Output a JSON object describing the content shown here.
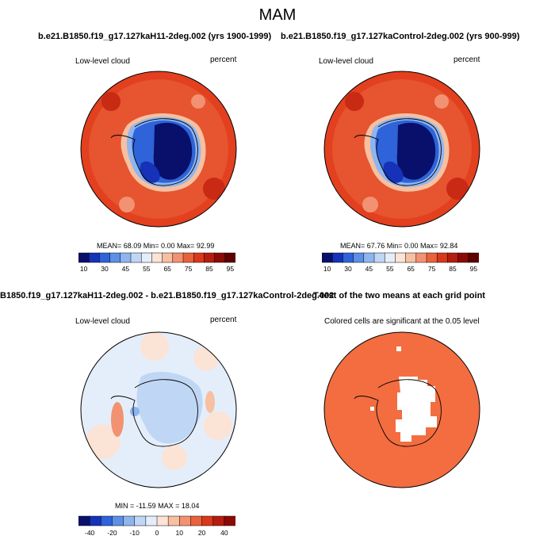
{
  "main_title": "MAM",
  "panels": [
    {
      "title": "b.e21.B1850.f19_g17.127kaH11-2deg.002 (yrs 1900-1999)",
      "left_label": "Low-level cloud",
      "right_label": "percent",
      "stats": "MEAN= 68.09  Min=   0.00  Max=  92.99",
      "colorbar_ticks": [
        "10",
        "30",
        "45",
        "55",
        "65",
        "75",
        "85",
        "95"
      ]
    },
    {
      "title": "b.e21.B1850.f19_g17.127kaControl-2deg.002 (yrs 900-999)",
      "left_label": "Low-level cloud",
      "right_label": "percent",
      "stats": "MEAN= 67.76  Min=   0.00  Max=  92.84",
      "colorbar_ticks": [
        "10",
        "30",
        "45",
        "55",
        "65",
        "75",
        "85",
        "95"
      ]
    },
    {
      "title": "B1850.f19_g17.127kaH11-2deg.002 - b.e21.B1850.f19_g17.127kaControl-2deg.002",
      "left_label": "Low-level cloud",
      "right_label": "percent",
      "stats": "MIN = -11.59 MAX = 18.04",
      "colorbar_ticks": [
        "-40",
        "-20",
        "-10",
        "0",
        "10",
        "20",
        "40"
      ]
    },
    {
      "title": "T-test of the two means at each grid point",
      "left_label": "Colored cells are significant at the 0.05 level",
      "right_label": "",
      "stats": "",
      "colorbar_ticks": []
    }
  ],
  "colors": {
    "abs_scale": [
      "#08106b",
      "#1532b8",
      "#2e63d9",
      "#5c8fe6",
      "#8fb5ef",
      "#c0d6f5",
      "#e4eefa",
      "#fbe3d6",
      "#f7c0a0",
      "#f29272",
      "#e9623c",
      "#d9381b",
      "#b51d10",
      "#8c0a06",
      "#5e0000"
    ],
    "diff_scale": [
      "#08106b",
      "#1532b8",
      "#2e63d9",
      "#5c8fe6",
      "#8fb5ef",
      "#c0d6f5",
      "#e4eefa",
      "#fbe3d6",
      "#f7c0a0",
      "#f29272",
      "#e9623c",
      "#d9381b",
      "#b51d10",
      "#8c0a06"
    ],
    "ocean_cloud": "#e2401f",
    "antarctic_low": "#030a7a",
    "significant": "#f36d40"
  }
}
